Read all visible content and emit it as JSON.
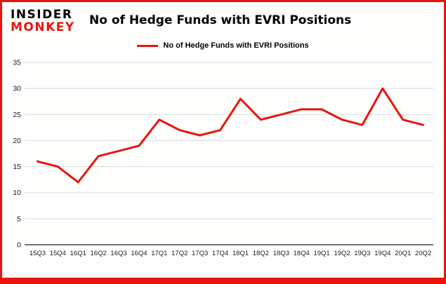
{
  "logo": {
    "line1": "INSIDER",
    "line2": "MONKEY"
  },
  "header": {
    "title": "No of Hedge Funds with EVRI Positions"
  },
  "legend": {
    "label": "No of Hedge Funds with EVRI Positions"
  },
  "chart_data": {
    "type": "line",
    "title": "No of Hedge Funds with EVRI Positions",
    "categories": [
      "15Q3",
      "15Q4",
      "16Q1",
      "16Q2",
      "16Q3",
      "16Q4",
      "17Q1",
      "17Q2",
      "17Q3",
      "17Q4",
      "18Q1",
      "18Q2",
      "18Q3",
      "18Q4",
      "19Q1",
      "19Q2",
      "19Q3",
      "19Q4",
      "20Q1",
      "20Q2"
    ],
    "values": [
      16,
      15,
      12,
      17,
      18,
      19,
      24,
      22,
      21,
      22,
      28,
      24,
      25,
      26,
      26,
      24,
      23,
      30,
      24,
      23
    ],
    "xlabel": "",
    "ylabel": "",
    "ylim": [
      0,
      35
    ],
    "yticks": [
      0,
      5,
      10,
      15,
      20,
      25,
      30,
      35
    ],
    "grid": true,
    "legend_position": "top",
    "line_color": "#e8150d",
    "gridline_color": "#d9d9d9",
    "axis_color": "#222222"
  }
}
